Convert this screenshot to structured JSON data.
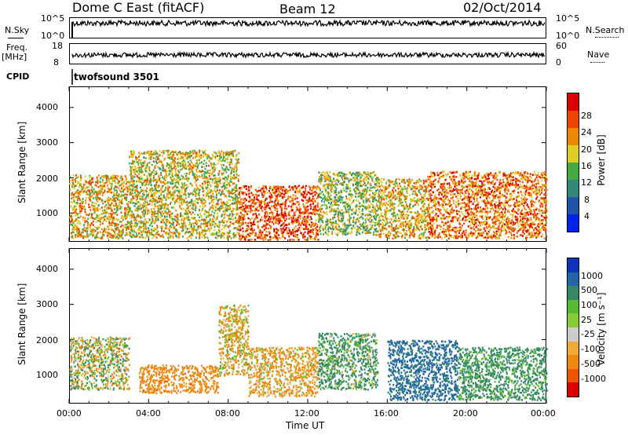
{
  "header": {
    "title": "Dome C East (fitACF)",
    "beam": "Beam 12",
    "date": "02/Oct/2014"
  },
  "strip_panels": {
    "nsky_label": "N.Sky",
    "nsky_top": "10^5",
    "nsky_bottom": "10^0",
    "nsearch_label": "N.Search",
    "nsearch_top": "10^5",
    "nsearch_bottom": "10^0",
    "freq_label": "Freq.",
    "freq_unit": "[MHz]",
    "freq_top": "18",
    "freq_bottom": "8",
    "nave_label": "Nave",
    "nave_top": "60",
    "nave_bottom": "0",
    "cpid_label": "CPID",
    "cpid_value": "twofsound 3501"
  },
  "x_axis": {
    "label": "Time UT",
    "ticks": [
      "00:00",
      "04:00",
      "08:00",
      "12:00",
      "16:00",
      "20:00",
      "00:00"
    ]
  },
  "power_panel": {
    "ylabel": "Slant Range [km]",
    "yticks": [
      "1000",
      "2000",
      "3000",
      "4000"
    ],
    "colorbar_label": "Power [dB]",
    "colorbar_ticks": [
      "4",
      "8",
      "12",
      "16",
      "20",
      "24",
      "28"
    ],
    "colors": [
      "#0022ee",
      "#2255aa",
      "#338877",
      "#44aa44",
      "#ddcc22",
      "#ee8800",
      "#ee4400",
      "#dd0000"
    ]
  },
  "velocity_panel": {
    "ylabel": "Slant Range [km]",
    "yticks": [
      "1000",
      "2000",
      "3000",
      "4000"
    ],
    "colorbar_label": "Velocity [m s⁻¹]",
    "colorbar_ticks": [
      "1000",
      "500",
      "100",
      "25",
      "-25",
      "-100",
      "-500",
      "-1000"
    ],
    "colors": [
      "#1133bb",
      "#2266aa",
      "#338866",
      "#55bb33",
      "#88cc33",
      "#cccccc",
      "#eeaa33",
      "#ee8811",
      "#ee5500",
      "#dd0000"
    ]
  },
  "chart_data": [
    {
      "type": "heatmap",
      "title": "Power [dB]",
      "xlabel": "Time UT",
      "ylabel": "Slant Range [km]",
      "xlim": [
        0,
        24
      ],
      "ylim": [
        180,
        4600
      ],
      "xticks": [
        "00:00",
        "04:00",
        "08:00",
        "12:00",
        "16:00",
        "20:00",
        "00:00"
      ],
      "yticks": [
        1000,
        2000,
        3000,
        4000
      ],
      "colorbar": {
        "label": "Power [dB]",
        "range": [
          0,
          32
        ],
        "ticks": [
          4,
          8,
          12,
          16,
          20,
          24,
          28
        ]
      },
      "regions": [
        {
          "x": [
            0,
            3
          ],
          "y": [
            300,
            2100
          ],
          "value": 20
        },
        {
          "x": [
            3,
            8.5
          ],
          "y": [
            300,
            2800
          ],
          "value": 18
        },
        {
          "x": [
            8.5,
            12.5
          ],
          "y": [
            250,
            1800
          ],
          "value": 26
        },
        {
          "x": [
            12.5,
            15.5
          ],
          "y": [
            400,
            2200
          ],
          "value": 16
        },
        {
          "x": [
            15.5,
            18
          ],
          "y": [
            300,
            2000
          ],
          "value": 20
        },
        {
          "x": [
            18,
            24
          ],
          "y": [
            300,
            2200
          ],
          "value": 24
        }
      ]
    },
    {
      "type": "heatmap",
      "title": "Velocity [m s⁻¹]",
      "xlabel": "Time UT",
      "ylabel": "Slant Range [km]",
      "xlim": [
        0,
        24
      ],
      "ylim": [
        180,
        4600
      ],
      "xticks": [
        "00:00",
        "04:00",
        "08:00",
        "12:00",
        "16:00",
        "20:00",
        "00:00"
      ],
      "yticks": [
        1000,
        2000,
        3000,
        4000
      ],
      "colorbar": {
        "label": "Velocity [m s⁻¹]",
        "ticks": [
          1000,
          500,
          100,
          25,
          -25,
          -100,
          -500,
          -1000
        ]
      },
      "regions": [
        {
          "x": [
            0,
            3
          ],
          "y": [
            600,
            2100
          ],
          "value": 0
        },
        {
          "x": [
            3.5,
            7.5
          ],
          "y": [
            500,
            1300
          ],
          "value": -300
        },
        {
          "x": [
            7.5,
            9
          ],
          "y": [
            1000,
            3000
          ],
          "value": -100
        },
        {
          "x": [
            9,
            12.5
          ],
          "y": [
            400,
            1800
          ],
          "value": -150
        },
        {
          "x": [
            12.5,
            15.5
          ],
          "y": [
            600,
            2200
          ],
          "value": 150
        },
        {
          "x": [
            16,
            19.5
          ],
          "y": [
            300,
            2000
          ],
          "value": 600
        },
        {
          "x": [
            19.5,
            24
          ],
          "y": [
            300,
            1800
          ],
          "value": 200
        }
      ]
    }
  ]
}
